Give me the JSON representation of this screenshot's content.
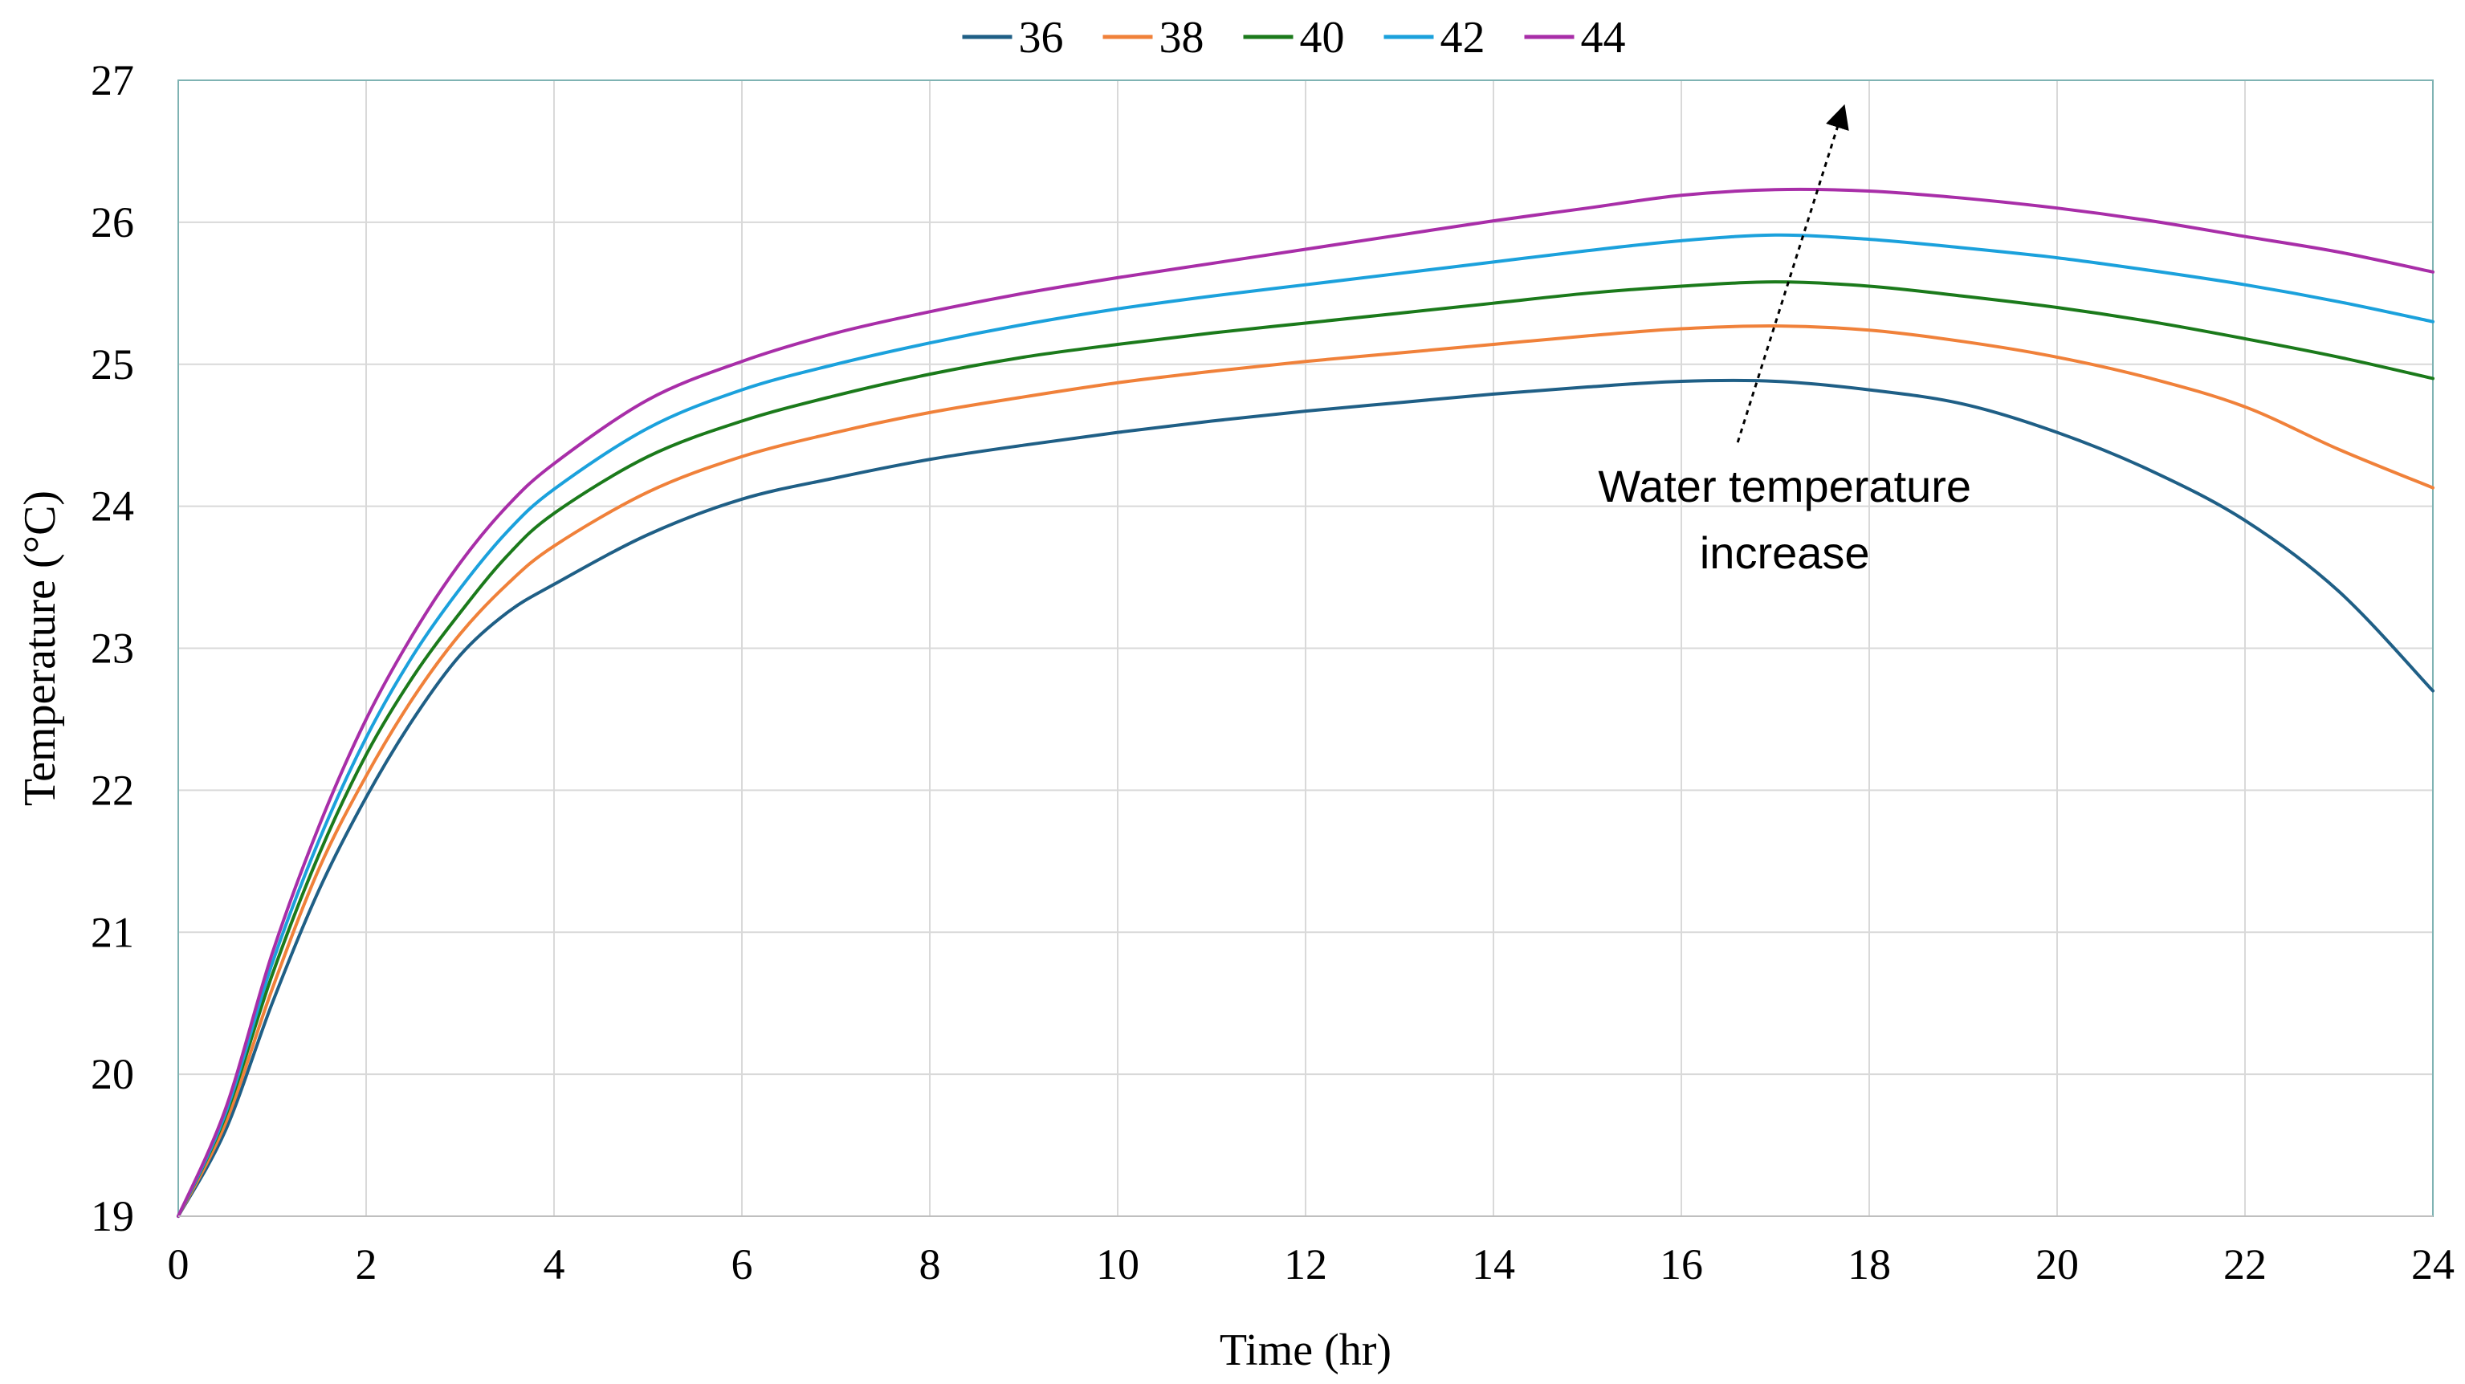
{
  "chart_data": {
    "type": "line",
    "title": "",
    "xlabel": "Time (hr)",
    "ylabel": "Temperature  (°C)",
    "xlim": [
      0,
      24
    ],
    "ylim": [
      19,
      27
    ],
    "xticks": [
      0,
      2,
      4,
      6,
      8,
      10,
      12,
      14,
      16,
      18,
      20,
      22,
      24
    ],
    "yticks": [
      19,
      20,
      21,
      22,
      23,
      24,
      25,
      26,
      27
    ],
    "grid": true,
    "legend_position": "top-center",
    "x": [
      0,
      0.5,
      1,
      1.5,
      2,
      2.5,
      3,
      3.5,
      4,
      5,
      6,
      7,
      8,
      9,
      10,
      11,
      12,
      13,
      14,
      15,
      16,
      17,
      18,
      19,
      20,
      21,
      22,
      23,
      24
    ],
    "series": [
      {
        "name": "36",
        "color": "#1f5f86",
        "values": [
          19.0,
          19.6,
          20.5,
          21.3,
          21.95,
          22.5,
          22.95,
          23.25,
          23.45,
          23.8,
          24.05,
          24.2,
          24.33,
          24.43,
          24.52,
          24.6,
          24.67,
          24.73,
          24.79,
          24.84,
          24.88,
          24.88,
          24.82,
          24.72,
          24.52,
          24.25,
          23.9,
          23.4,
          22.7
        ]
      },
      {
        "name": "38",
        "color": "#f0813a",
        "values": [
          19.0,
          19.65,
          20.6,
          21.45,
          22.1,
          22.65,
          23.1,
          23.45,
          23.72,
          24.1,
          24.35,
          24.52,
          24.66,
          24.77,
          24.87,
          24.95,
          25.02,
          25.08,
          25.14,
          25.2,
          25.25,
          25.27,
          25.24,
          25.16,
          25.05,
          24.9,
          24.7,
          24.4,
          24.13
        ]
      },
      {
        "name": "40",
        "color": "#1b7a1b",
        "values": [
          19.0,
          19.7,
          20.7,
          21.55,
          22.25,
          22.8,
          23.25,
          23.65,
          23.95,
          24.35,
          24.6,
          24.78,
          24.93,
          25.05,
          25.14,
          25.22,
          25.29,
          25.36,
          25.43,
          25.5,
          25.55,
          25.58,
          25.55,
          25.48,
          25.4,
          25.3,
          25.18,
          25.05,
          24.9
        ]
      },
      {
        "name": "42",
        "color": "#1ba1dc",
        "values": [
          19.0,
          19.72,
          20.78,
          21.65,
          22.37,
          22.95,
          23.42,
          23.82,
          24.12,
          24.55,
          24.82,
          25.0,
          25.15,
          25.28,
          25.39,
          25.48,
          25.56,
          25.64,
          25.72,
          25.8,
          25.87,
          25.91,
          25.88,
          25.82,
          25.75,
          25.66,
          25.56,
          25.44,
          25.3
        ]
      },
      {
        "name": "44",
        "color": "#a82ea8",
        "values": [
          19.0,
          19.75,
          20.85,
          21.75,
          22.5,
          23.1,
          23.6,
          24.0,
          24.3,
          24.75,
          25.02,
          25.22,
          25.37,
          25.5,
          25.61,
          25.71,
          25.81,
          25.91,
          26.01,
          26.1,
          26.19,
          26.23,
          26.22,
          26.17,
          26.1,
          26.01,
          25.9,
          25.79,
          25.65
        ]
      }
    ],
    "annotations": [
      {
        "text_line1": "Water temperature",
        "text_line2": "increase",
        "arrow_from": [
          16.6,
          24.45
        ],
        "arrow_to": [
          17.7,
          26.75
        ]
      }
    ]
  }
}
